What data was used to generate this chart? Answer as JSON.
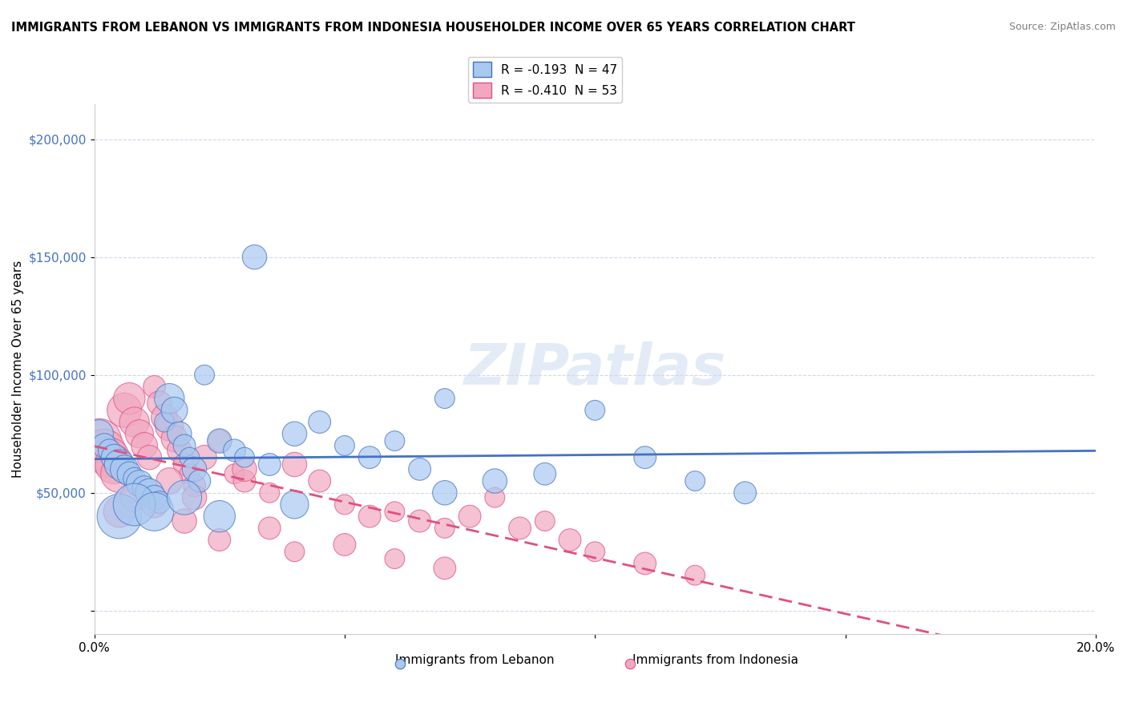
{
  "title": "IMMIGRANTS FROM LEBANON VS IMMIGRANTS FROM INDONESIA HOUSEHOLDER INCOME OVER 65 YEARS CORRELATION CHART",
  "source": "Source: ZipAtlas.com",
  "xlabel": "",
  "ylabel": "Householder Income Over 65 years",
  "xlim": [
    0.0,
    0.2
  ],
  "ylim": [
    -10000,
    215000
  ],
  "yticks": [
    0,
    50000,
    100000,
    150000,
    200000
  ],
  "ytick_labels": [
    "",
    "$50,000",
    "$100,000",
    "$150,000",
    "$200,000"
  ],
  "xticks": [
    0.0,
    0.05,
    0.1,
    0.15,
    0.2
  ],
  "xtick_labels": [
    "0.0%",
    "",
    "",
    "",
    "20.0%"
  ],
  "legend1_label": "R = -0.193  N = 47",
  "legend2_label": "R = -0.410  N = 53",
  "color_lebanon": "#a8c8f0",
  "color_indonesia": "#f0a8c0",
  "line_color_lebanon": "#4472c4",
  "line_color_indonesia": "#e05080",
  "watermark": "ZIPatlas",
  "background_color": "#ffffff",
  "grid_color": "#d0d8e8",
  "lebanon_x": [
    0.001,
    0.002,
    0.003,
    0.004,
    0.005,
    0.006,
    0.007,
    0.008,
    0.009,
    0.01,
    0.011,
    0.012,
    0.013,
    0.014,
    0.015,
    0.016,
    0.017,
    0.018,
    0.019,
    0.02,
    0.021,
    0.022,
    0.025,
    0.028,
    0.03,
    0.032,
    0.035,
    0.04,
    0.045,
    0.05,
    0.055,
    0.06,
    0.065,
    0.07,
    0.08,
    0.09,
    0.1,
    0.11,
    0.12,
    0.13,
    0.005,
    0.008,
    0.012,
    0.018,
    0.025,
    0.04,
    0.07
  ],
  "lebanon_y": [
    75000,
    70000,
    68000,
    65000,
    62000,
    60000,
    58000,
    56000,
    54000,
    52000,
    50000,
    48000,
    46000,
    80000,
    90000,
    85000,
    75000,
    70000,
    65000,
    60000,
    55000,
    100000,
    72000,
    68000,
    65000,
    150000,
    62000,
    75000,
    80000,
    70000,
    65000,
    72000,
    60000,
    90000,
    55000,
    58000,
    85000,
    65000,
    55000,
    50000,
    40000,
    45000,
    42000,
    48000,
    40000,
    45000,
    50000
  ],
  "lebanon_size": [
    80,
    60,
    50,
    70,
    90,
    80,
    60,
    50,
    70,
    60,
    80,
    60,
    50,
    40,
    90,
    70,
    60,
    50,
    40,
    60,
    50,
    40,
    60,
    50,
    40,
    60,
    50,
    60,
    50,
    40,
    50,
    40,
    50,
    40,
    60,
    50,
    40,
    50,
    40,
    50,
    200,
    180,
    150,
    120,
    100,
    80,
    60
  ],
  "indonesia_x": [
    0.001,
    0.002,
    0.003,
    0.004,
    0.005,
    0.006,
    0.007,
    0.008,
    0.009,
    0.01,
    0.011,
    0.012,
    0.013,
    0.014,
    0.015,
    0.016,
    0.017,
    0.018,
    0.019,
    0.02,
    0.022,
    0.025,
    0.028,
    0.03,
    0.035,
    0.04,
    0.045,
    0.05,
    0.055,
    0.06,
    0.065,
    0.07,
    0.075,
    0.08,
    0.085,
    0.09,
    0.095,
    0.1,
    0.11,
    0.12,
    0.005,
    0.008,
    0.012,
    0.018,
    0.025,
    0.04,
    0.05,
    0.06,
    0.07,
    0.03,
    0.015,
    0.02,
    0.035
  ],
  "indonesia_y": [
    72000,
    68000,
    65000,
    62000,
    58000,
    85000,
    90000,
    80000,
    75000,
    70000,
    65000,
    95000,
    88000,
    82000,
    78000,
    73000,
    68000,
    62000,
    58000,
    53000,
    65000,
    72000,
    58000,
    55000,
    50000,
    62000,
    55000,
    45000,
    40000,
    42000,
    38000,
    35000,
    40000,
    48000,
    35000,
    38000,
    30000,
    25000,
    20000,
    15000,
    42000,
    48000,
    45000,
    38000,
    30000,
    25000,
    28000,
    22000,
    18000,
    60000,
    55000,
    48000,
    35000
  ],
  "indonesia_size": [
    200,
    180,
    160,
    150,
    140,
    120,
    100,
    90,
    80,
    70,
    60,
    50,
    60,
    70,
    80,
    70,
    60,
    50,
    40,
    50,
    60,
    50,
    40,
    50,
    40,
    60,
    50,
    40,
    50,
    40,
    50,
    40,
    50,
    40,
    50,
    40,
    50,
    40,
    50,
    40,
    100,
    80,
    70,
    60,
    50,
    40,
    50,
    40,
    50,
    60,
    70,
    60,
    50
  ]
}
